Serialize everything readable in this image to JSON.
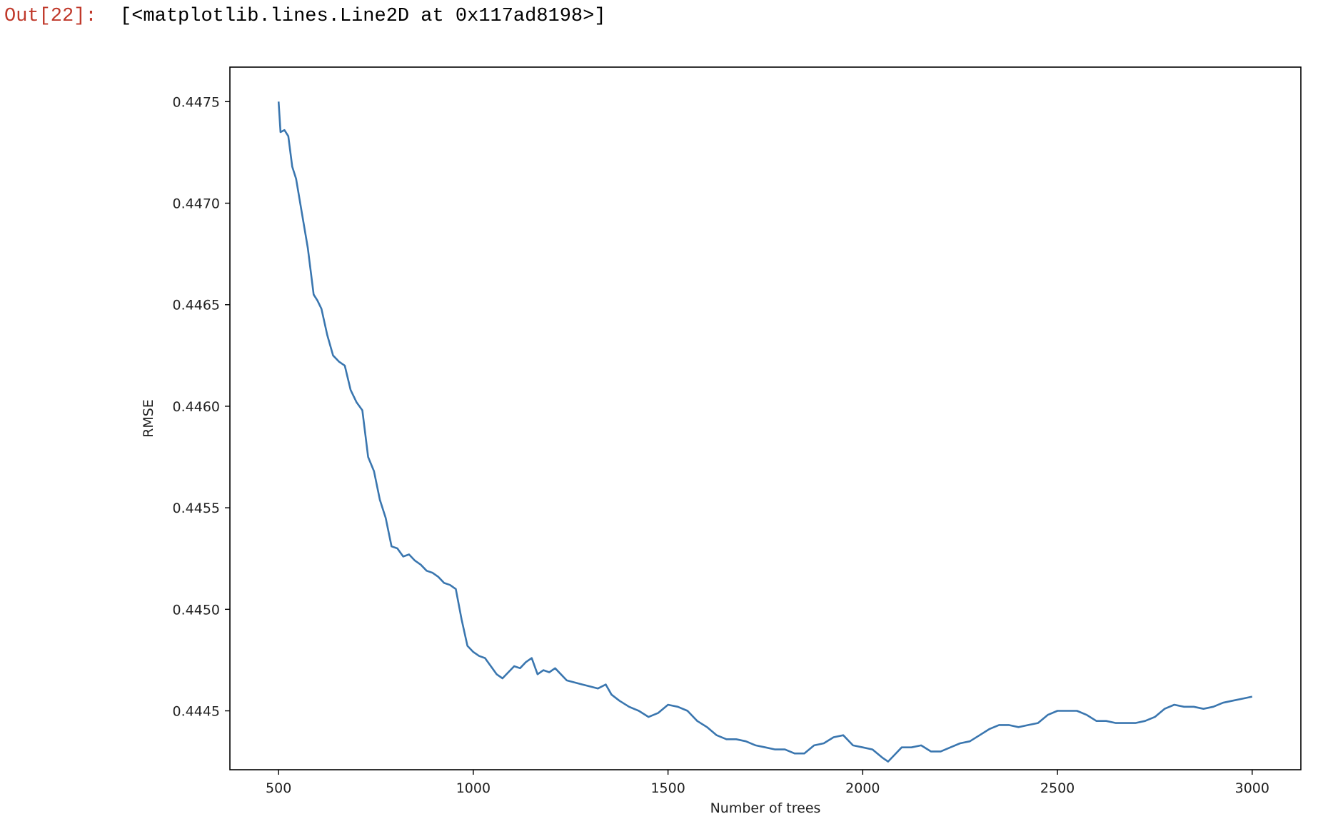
{
  "output": {
    "prompt": "Out[22]:",
    "text": "[<matplotlib.lines.Line2D at 0x117ad8198>]"
  },
  "chart_data": {
    "type": "line",
    "title": "",
    "xlabel": "Number of trees",
    "ylabel": "RMSE",
    "xlim": [
      375,
      3125
    ],
    "ylim": [
      0.44421,
      0.44767
    ],
    "xticks": [
      500,
      1000,
      1500,
      2000,
      2500,
      3000
    ],
    "xtick_labels": [
      "500",
      "1000",
      "1500",
      "2000",
      "2500",
      "3000"
    ],
    "yticks": [
      0.4445,
      0.445,
      0.4455,
      0.446,
      0.4465,
      0.447,
      0.4475
    ],
    "ytick_labels": [
      "0.4445",
      "0.4450",
      "0.4455",
      "0.4460",
      "0.4465",
      "0.4470",
      "0.4475"
    ],
    "grid": false,
    "color": "#3a76af",
    "series": [
      {
        "x": [
          500,
          505,
          515,
          525,
          535,
          545,
          560,
          575,
          590,
          600,
          610,
          625,
          640,
          655,
          670,
          685,
          700,
          715,
          730,
          745,
          760,
          775,
          790,
          805,
          820,
          835,
          850,
          865,
          880,
          895,
          910,
          925,
          940,
          955,
          970,
          985,
          1000,
          1015,
          1030,
          1045,
          1060,
          1075,
          1090,
          1105,
          1120,
          1135,
          1150,
          1165,
          1180,
          1195,
          1210,
          1225,
          1240,
          1260,
          1280,
          1300,
          1320,
          1340,
          1355,
          1375,
          1400,
          1425,
          1450,
          1475,
          1500,
          1525,
          1550,
          1575,
          1600,
          1625,
          1650,
          1675,
          1700,
          1725,
          1750,
          1775,
          1800,
          1825,
          1850,
          1875,
          1900,
          1925,
          1950,
          1975,
          2000,
          2025,
          2050,
          2065,
          2080,
          2100,
          2125,
          2150,
          2175,
          2200,
          2225,
          2250,
          2275,
          2300,
          2325,
          2350,
          2375,
          2400,
          2425,
          2450,
          2475,
          2500,
          2525,
          2550,
          2575,
          2600,
          2625,
          2650,
          2675,
          2700,
          2725,
          2750,
          2775,
          2800,
          2825,
          2850,
          2875,
          2900,
          2925,
          2950,
          2975,
          3000
        ],
        "values": [
          0.4475,
          0.44735,
          0.44736,
          0.44733,
          0.44718,
          0.44712,
          0.44695,
          0.44678,
          0.44655,
          0.44652,
          0.44648,
          0.44635,
          0.44625,
          0.44622,
          0.4462,
          0.44608,
          0.44602,
          0.44598,
          0.44575,
          0.44568,
          0.44554,
          0.44545,
          0.44531,
          0.4453,
          0.44526,
          0.44527,
          0.44524,
          0.44522,
          0.44519,
          0.44518,
          0.44516,
          0.44513,
          0.44512,
          0.4451,
          0.44495,
          0.44482,
          0.44479,
          0.44477,
          0.44476,
          0.44472,
          0.44468,
          0.44466,
          0.44469,
          0.44472,
          0.44471,
          0.44474,
          0.44476,
          0.44468,
          0.4447,
          0.44469,
          0.44471,
          0.44468,
          0.44465,
          0.44464,
          0.44463,
          0.44462,
          0.44461,
          0.44463,
          0.44458,
          0.44455,
          0.44452,
          0.4445,
          0.44447,
          0.44449,
          0.44453,
          0.44452,
          0.4445,
          0.44445,
          0.44442,
          0.44438,
          0.44436,
          0.44436,
          0.44435,
          0.44433,
          0.44432,
          0.44431,
          0.44431,
          0.44429,
          0.44429,
          0.44433,
          0.44434,
          0.44437,
          0.44438,
          0.44433,
          0.44432,
          0.44431,
          0.44427,
          0.44425,
          0.44428,
          0.44432,
          0.44432,
          0.44433,
          0.4443,
          0.4443,
          0.44432,
          0.44434,
          0.44435,
          0.44438,
          0.44441,
          0.44443,
          0.44443,
          0.44442,
          0.44443,
          0.44444,
          0.44448,
          0.4445,
          0.4445,
          0.4445,
          0.44448,
          0.44445,
          0.44445,
          0.44444,
          0.44444,
          0.44444,
          0.44445,
          0.44447,
          0.44451,
          0.44453,
          0.44452,
          0.44452,
          0.44451,
          0.44452,
          0.44454,
          0.44455,
          0.44456,
          0.44457
        ]
      }
    ]
  }
}
